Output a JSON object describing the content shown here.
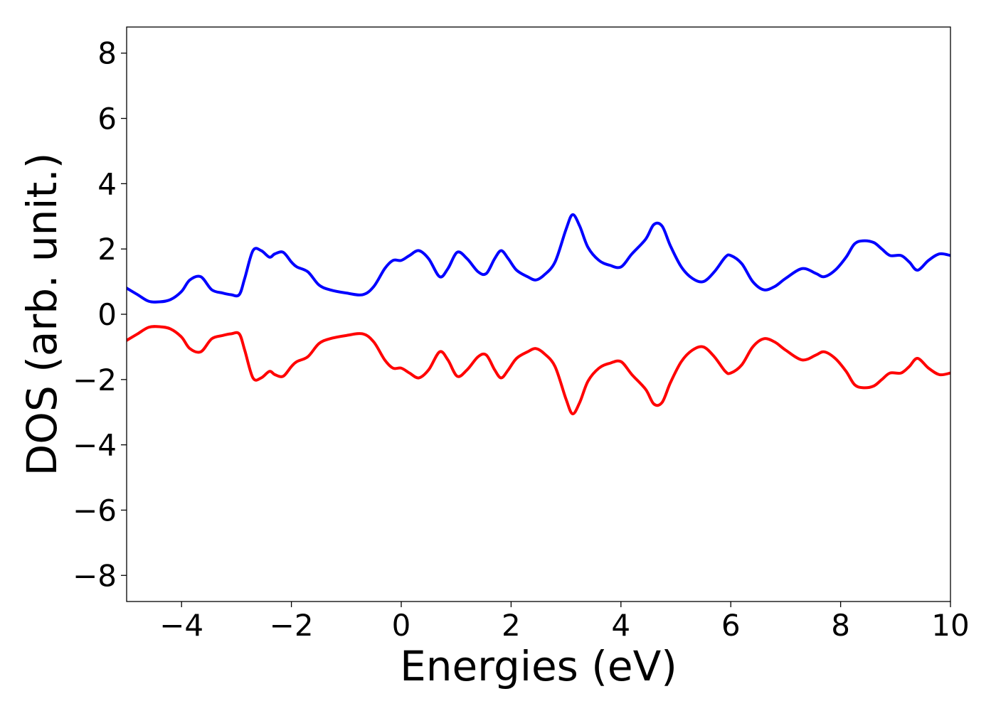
{
  "chart_data": {
    "type": "line",
    "title": "",
    "xlabel": "Energies (eV)",
    "ylabel": "DOS (arb. unit.)",
    "xlim": [
      -5,
      10
    ],
    "ylim": [
      -8.8,
      8.8
    ],
    "xticks": [
      -4,
      -2,
      0,
      2,
      4,
      6,
      8,
      10
    ],
    "yticks": [
      -8,
      -6,
      -4,
      -2,
      0,
      2,
      4,
      6,
      8
    ],
    "xtick_labels": [
      "−4",
      "−2",
      "0",
      "2",
      "4",
      "6",
      "8",
      "10"
    ],
    "ytick_labels": [
      "−8",
      "−6",
      "−4",
      "−2",
      "0",
      "2",
      "4",
      "6",
      "8"
    ],
    "grid": false,
    "legend": "none",
    "series": [
      {
        "color": "#0000ff",
        "x": [
          -5.0,
          -4.8,
          -4.6,
          -4.4,
          -4.2,
          -4.0,
          -3.85,
          -3.65,
          -3.45,
          -3.25,
          -3.1,
          -2.95,
          -2.85,
          -2.7,
          -2.55,
          -2.4,
          -2.3,
          -2.15,
          -2.0,
          -1.9,
          -1.7,
          -1.5,
          -1.3,
          -1.0,
          -0.7,
          -0.5,
          -0.3,
          -0.15,
          0.0,
          0.15,
          0.32,
          0.5,
          0.7,
          0.85,
          1.02,
          1.2,
          1.4,
          1.55,
          1.7,
          1.82,
          1.95,
          2.1,
          2.3,
          2.45,
          2.6,
          2.8,
          3.0,
          3.12,
          3.25,
          3.4,
          3.6,
          3.8,
          4.0,
          4.2,
          4.45,
          4.6,
          4.75,
          4.9,
          5.1,
          5.3,
          5.5,
          5.7,
          5.9,
          6.0,
          6.2,
          6.4,
          6.6,
          6.8,
          7.0,
          7.3,
          7.55,
          7.7,
          7.9,
          8.1,
          8.25,
          8.4,
          8.6,
          8.75,
          8.9,
          9.1,
          9.25,
          9.4,
          9.6,
          9.8,
          10.0
        ],
        "values": [
          0.8,
          0.6,
          0.4,
          0.38,
          0.45,
          0.7,
          1.05,
          1.15,
          0.75,
          0.65,
          0.6,
          0.6,
          1.1,
          1.95,
          1.95,
          1.75,
          1.85,
          1.9,
          1.6,
          1.45,
          1.3,
          0.9,
          0.75,
          0.65,
          0.6,
          0.85,
          1.4,
          1.65,
          1.65,
          1.8,
          1.95,
          1.7,
          1.15,
          1.4,
          1.9,
          1.7,
          1.3,
          1.25,
          1.7,
          1.95,
          1.7,
          1.35,
          1.15,
          1.05,
          1.2,
          1.6,
          2.6,
          3.05,
          2.7,
          2.05,
          1.65,
          1.5,
          1.45,
          1.85,
          2.3,
          2.75,
          2.7,
          2.1,
          1.45,
          1.1,
          1.0,
          1.3,
          1.75,
          1.8,
          1.55,
          1.0,
          0.75,
          0.85,
          1.1,
          1.4,
          1.25,
          1.15,
          1.35,
          1.75,
          2.15,
          2.25,
          2.2,
          2.0,
          1.8,
          1.8,
          1.6,
          1.35,
          1.65,
          1.85,
          1.8
        ]
      },
      {
        "color": "#ff0000",
        "x": [
          -5.0,
          -4.8,
          -4.6,
          -4.4,
          -4.2,
          -4.0,
          -3.85,
          -3.65,
          -3.45,
          -3.25,
          -3.1,
          -2.95,
          -2.85,
          -2.7,
          -2.55,
          -2.4,
          -2.3,
          -2.15,
          -2.0,
          -1.9,
          -1.7,
          -1.5,
          -1.3,
          -1.0,
          -0.7,
          -0.5,
          -0.3,
          -0.15,
          0.0,
          0.15,
          0.32,
          0.5,
          0.7,
          0.85,
          1.02,
          1.2,
          1.4,
          1.55,
          1.7,
          1.82,
          1.95,
          2.1,
          2.3,
          2.45,
          2.6,
          2.8,
          3.0,
          3.12,
          3.25,
          3.4,
          3.6,
          3.8,
          4.0,
          4.2,
          4.45,
          4.6,
          4.75,
          4.9,
          5.1,
          5.3,
          5.5,
          5.7,
          5.9,
          6.0,
          6.2,
          6.4,
          6.6,
          6.8,
          7.0,
          7.3,
          7.55,
          7.7,
          7.9,
          8.1,
          8.25,
          8.4,
          8.6,
          8.75,
          8.9,
          9.1,
          9.25,
          9.4,
          9.6,
          9.8,
          10.0
        ],
        "values": [
          -0.8,
          -0.6,
          -0.4,
          -0.38,
          -0.45,
          -0.7,
          -1.05,
          -1.15,
          -0.75,
          -0.65,
          -0.6,
          -0.6,
          -1.1,
          -1.95,
          -1.95,
          -1.75,
          -1.85,
          -1.9,
          -1.6,
          -1.45,
          -1.3,
          -0.9,
          -0.75,
          -0.65,
          -0.6,
          -0.85,
          -1.4,
          -1.65,
          -1.65,
          -1.8,
          -1.95,
          -1.7,
          -1.15,
          -1.4,
          -1.9,
          -1.7,
          -1.3,
          -1.25,
          -1.7,
          -1.95,
          -1.7,
          -1.35,
          -1.15,
          -1.05,
          -1.2,
          -1.6,
          -2.6,
          -3.05,
          -2.7,
          -2.05,
          -1.65,
          -1.5,
          -1.45,
          -1.85,
          -2.3,
          -2.75,
          -2.7,
          -2.1,
          -1.45,
          -1.1,
          -1.0,
          -1.3,
          -1.75,
          -1.8,
          -1.55,
          -1.0,
          -0.75,
          -0.85,
          -1.1,
          -1.4,
          -1.25,
          -1.15,
          -1.35,
          -1.75,
          -2.15,
          -2.25,
          -2.2,
          -2.0,
          -1.8,
          -1.8,
          -1.6,
          -1.35,
          -1.65,
          -1.85,
          -1.8
        ]
      }
    ]
  }
}
